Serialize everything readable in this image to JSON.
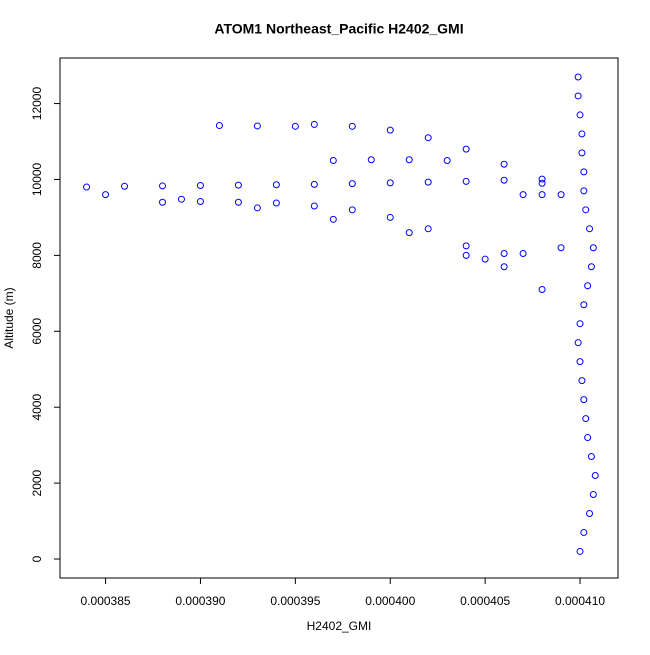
{
  "chart_data": {
    "type": "scatter",
    "title": "ATOM1 Northeast_Pacific H2402_GMI",
    "x_label": "H2402_GMI",
    "y_label": "Altitude (m)",
    "color": "#0000ff",
    "xlim": [
      0.0003826,
      0.000412
    ],
    "ylim": [
      -500,
      13200
    ],
    "xticks": [
      0.000385,
      {
        "value": 0.00039,
        "label": "0.000390"
      },
      0.000395,
      {
        "value": 0.0004,
        "label": "0.000400"
      },
      0.000405,
      {
        "value": 0.00041,
        "label": "0.000410"
      }
    ],
    "yticks": [
      0,
      2000,
      4000,
      6000,
      8000,
      10000,
      12000
    ],
    "x": [
      0.00041,
      0.0004102,
      0.0004105,
      0.0004107,
      0.0004108,
      0.0004106,
      0.0004104,
      0.0004103,
      0.0004102,
      0.0004101,
      0.00041,
      0.0004099,
      0.00041,
      0.0004102,
      0.0004104,
      0.0004106,
      0.0004107,
      0.0004105,
      0.0004103,
      0.0004102,
      0.0004102,
      0.0004101,
      0.0004101,
      0.00041,
      0.0004099,
      0.0004099,
      0.000384,
      0.000386,
      0.000388,
      0.00039,
      0.000392,
      0.000394,
      0.000396,
      0.000398,
      0.0004,
      0.000402,
      0.000404,
      0.000406,
      0.000408,
      0.000388,
      0.00039,
      0.000392,
      0.000394,
      0.000396,
      0.000398,
      0.0004,
      0.000402,
      0.000404,
      0.000406,
      0.000385,
      0.000389,
      0.000393,
      0.000397,
      0.000401,
      0.000404,
      0.000406,
      0.000408,
      0.000391,
      0.000393,
      0.000395,
      0.000396,
      0.000398,
      0.0004,
      0.000402,
      0.000404,
      0.000406,
      0.000408,
      0.000397,
      0.000399,
      0.000401,
      0.000403,
      0.000405,
      0.000407,
      0.000409,
      0.000407,
      0.000408,
      0.000409
    ],
    "y": [
      200,
      700,
      1200,
      1700,
      2200,
      2700,
      3200,
      3700,
      4200,
      4700,
      5200,
      5700,
      6200,
      6700,
      7200,
      7700,
      8200,
      8700,
      9200,
      9700,
      10200,
      10700,
      11200,
      11700,
      12200,
      12700,
      9800,
      9820,
      9830,
      9840,
      9850,
      9860,
      9870,
      9890,
      9910,
      9930,
      9950,
      9980,
      10010,
      9400,
      9420,
      9400,
      9380,
      9300,
      9200,
      9000,
      8700,
      8000,
      8050,
      9600,
      9480,
      9250,
      8950,
      8600,
      8250,
      7700,
      7100,
      11420,
      11410,
      11400,
      11450,
      11400,
      11300,
      11100,
      10800,
      10400,
      9900,
      10500,
      10520,
      10520,
      10500,
      7900,
      8050,
      8200,
      9600,
      9600,
      9600
    ]
  }
}
